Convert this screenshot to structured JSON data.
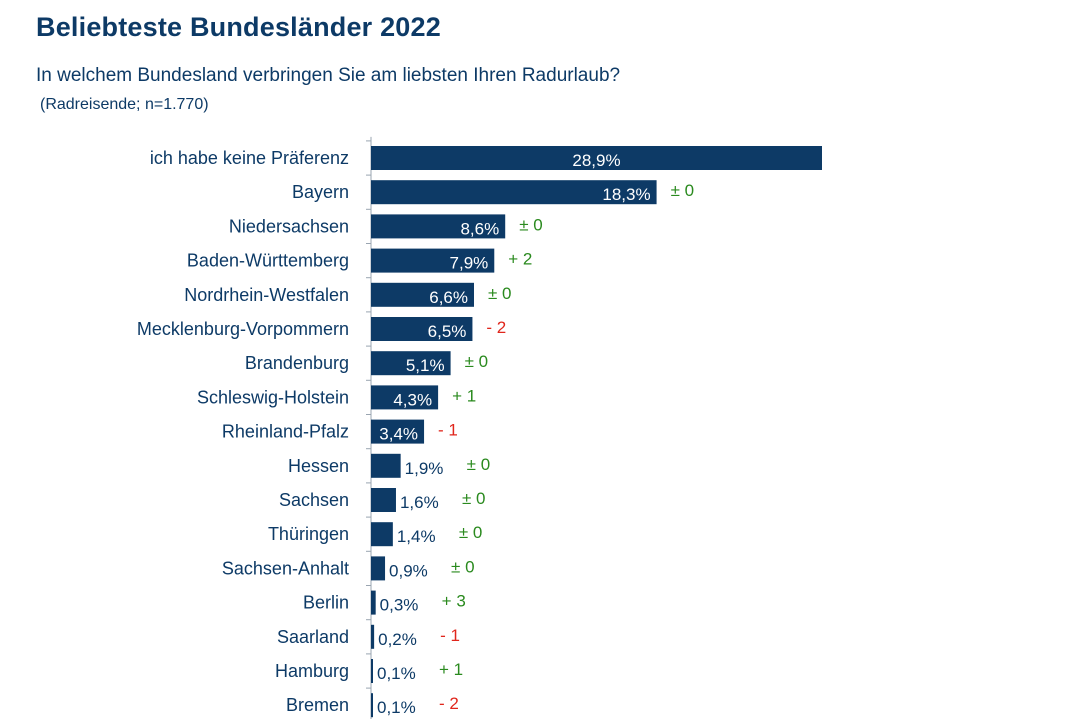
{
  "header": {
    "title": "Beliebteste Bundesländer 2022",
    "subtitle": "In welchem Bundesland verbringen Sie am liebsten Ihren Radurlaub?",
    "note": "(Radreisende; n=1.770)"
  },
  "colors": {
    "bar": "#0d3a66",
    "text": "#0d3a66",
    "positive": "#2a8a1e",
    "negative": "#e0261c"
  },
  "chart_data": {
    "type": "bar",
    "orientation": "horizontal",
    "categories": [
      "ich habe keine Präferenz",
      "Bayern",
      "Niedersachsen",
      "Baden-Württemberg",
      "Nordrhein-Westfalen",
      "Mecklenburg-Vorpommern",
      "Brandenburg",
      "Schleswig-Holstein",
      "Rheinland-Pfalz",
      "Hessen",
      "Sachsen",
      "Thüringen",
      "Sachsen-Anhalt",
      "Berlin",
      "Saarland",
      "Hamburg",
      "Bremen"
    ],
    "values": [
      28.9,
      18.3,
      8.6,
      7.9,
      6.6,
      6.5,
      5.1,
      4.3,
      3.4,
      1.9,
      1.6,
      1.4,
      0.9,
      0.3,
      0.2,
      0.1,
      0.1
    ],
    "value_labels": [
      "28,9%",
      "18,3%",
      "8,6%",
      "7,9%",
      "6,6%",
      "6,5%",
      "5,1%",
      "4,3%",
      "3,4%",
      "1,9%",
      "1,6%",
      "1,4%",
      "0,9%",
      "0,3%",
      "0,2%",
      "0,1%",
      "0,1%"
    ],
    "changes": [
      "",
      "± 0",
      "± 0",
      "+ 2",
      "± 0",
      "- 2",
      "± 0",
      "+ 1",
      "- 1",
      "± 0",
      "± 0",
      "± 0",
      "± 0",
      "+ 3",
      "- 1",
      "+ 1",
      "- 2"
    ],
    "change_signs": [
      "none",
      "zero",
      "zero",
      "pos",
      "zero",
      "neg",
      "zero",
      "pos",
      "neg",
      "zero",
      "zero",
      "zero",
      "zero",
      "pos",
      "neg",
      "pos",
      "neg"
    ],
    "xlim": [
      0,
      28.9
    ],
    "grid": false,
    "legend": "none"
  }
}
